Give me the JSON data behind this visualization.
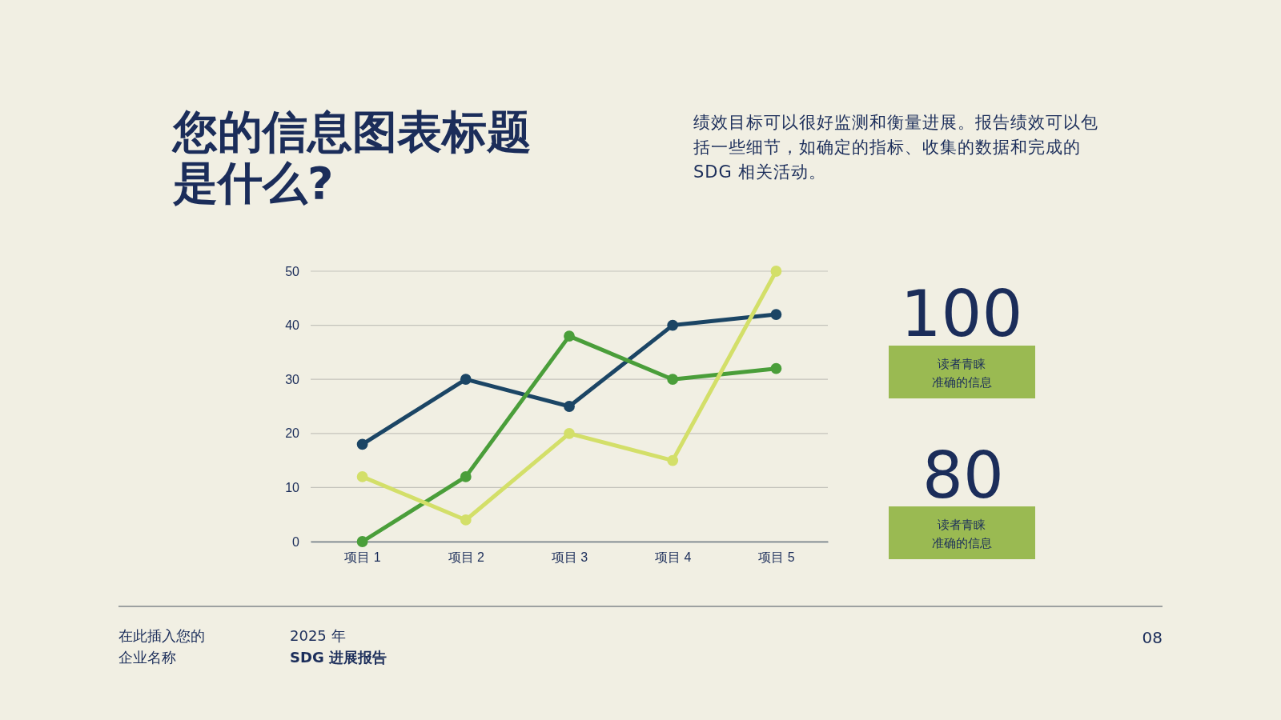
{
  "chart_data": {
    "type": "line",
    "title": "您的信息图表标题是什么?",
    "categories": [
      "项目 1",
      "项目 2",
      "项目 3",
      "项目 4",
      "项目 5"
    ],
    "series": [
      {
        "color": "#1b4565",
        "values": [
          18,
          30,
          25,
          40,
          42
        ]
      },
      {
        "color": "#4a9e3a",
        "values": [
          0,
          12,
          38,
          30,
          32
        ]
      },
      {
        "color": "#d3df69",
        "values": [
          12,
          4,
          20,
          15,
          50
        ]
      }
    ],
    "ylim": [
      0,
      50
    ],
    "yticks": [
      0,
      10,
      20,
      30,
      40,
      50
    ],
    "grid": "y",
    "marker": "circle",
    "line_style": "solid",
    "annotations": [
      "绩效目标可以很好监测和衡量进展。报告绩效可以包括一些细节，如确定的指标、收集的数据和完成的SDG 相关活动。",
      "100",
      "读者青睐准确的信息",
      "80",
      "读者青睐准确的信息",
      "在此插入您的企业名称",
      "2025 年\nSDG 进展报告",
      "08"
    ]
  }
}
